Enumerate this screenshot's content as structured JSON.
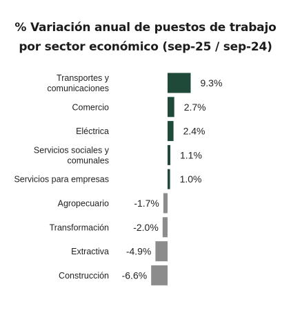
{
  "chart_data": {
    "type": "bar",
    "orientation": "horizontal",
    "title_lines": [
      "% Variación anual de puestos de trabajo",
      "por sector económico (sep-25 / sep-24)"
    ],
    "categories": [
      [
        "Transportes y",
        "comunicaciones"
      ],
      [
        "Comercio"
      ],
      [
        "Eléctrica"
      ],
      [
        "Servicios sociales y",
        "comunales"
      ],
      [
        "Servicios para empresas"
      ],
      [
        "Agropecuario"
      ],
      [
        "Transformación"
      ],
      [
        "Extractiva"
      ],
      [
        "Construcción"
      ]
    ],
    "values": [
      9.3,
      2.7,
      2.4,
      1.1,
      1.0,
      -1.7,
      -2.0,
      -4.9,
      -6.6
    ],
    "value_labels": [
      "9.3%",
      "2.7%",
      "2.4%",
      "1.1%",
      "1.0%",
      "-1.7%",
      "-2.0%",
      "-4.9%",
      "-6.6%"
    ],
    "colors": {
      "positive": "#1f4a3a",
      "negative": "#8c8c8c"
    },
    "grid": false,
    "legend": false
  }
}
